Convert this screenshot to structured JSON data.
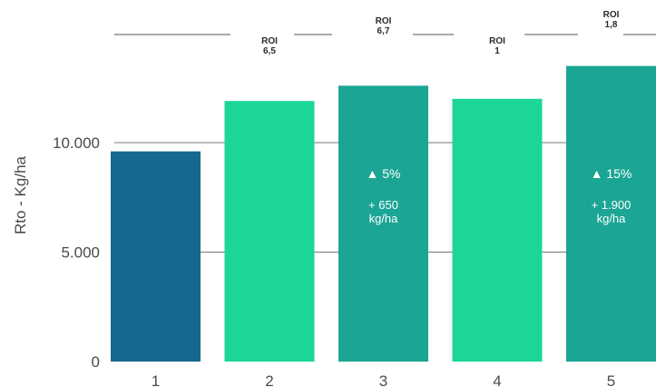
{
  "chart_data": {
    "type": "bar",
    "title": "",
    "xlabel": "",
    "ylabel": "Rto - Kg/ha",
    "ylim": [
      0,
      14000
    ],
    "yticks": [
      0,
      5000,
      10000
    ],
    "ytick_labels": [
      "0",
      "5.000",
      "10.000"
    ],
    "grid": true,
    "categories": [
      "1",
      "2",
      "3",
      "4",
      "5"
    ],
    "values": [
      9600,
      11900,
      12600,
      12000,
      13500
    ],
    "bar_colors": [
      "#17688f",
      "#1bd696",
      "#1ba594",
      "#1bd696",
      "#1ba594"
    ],
    "roi_labels": [
      {
        "bar": "2",
        "line1": "ROI",
        "line2": "6,5"
      },
      {
        "bar": "3",
        "line1": "ROI",
        "line2": "6,7"
      },
      {
        "bar": "4",
        "line1": "ROI",
        "line2": "1"
      },
      {
        "bar": "5",
        "line1": "ROI",
        "line2": "1,8"
      }
    ],
    "bar_annotations": [
      {
        "bar": "3",
        "pct": "▲ 5%",
        "gain": "+ 650",
        "unit": "kg/ha"
      },
      {
        "bar": "5",
        "pct": "▲ 15%",
        "gain": "+ 1.900",
        "unit": "kg/ha"
      }
    ]
  }
}
